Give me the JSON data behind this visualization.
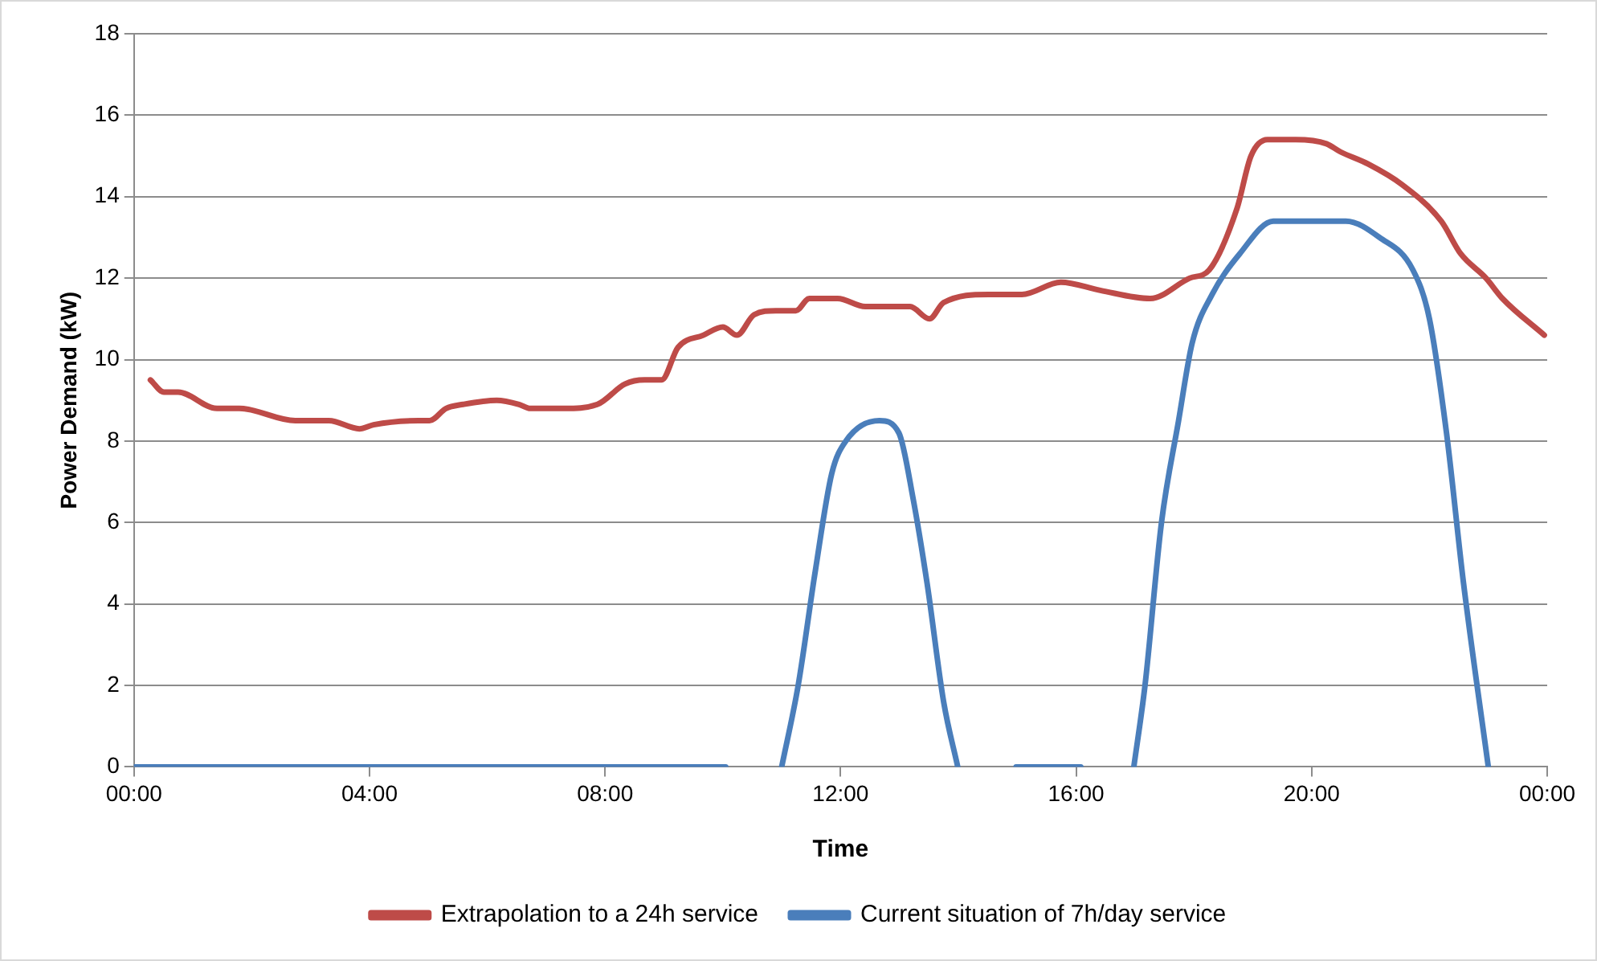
{
  "chart_data": {
    "type": "line",
    "xlabel": "Time",
    "ylabel": "Power Demand (kW)",
    "xlim": [
      0,
      24
    ],
    "xticks": [
      {
        "value": 0,
        "label": "00:00"
      },
      {
        "value": 4,
        "label": "04:00"
      },
      {
        "value": 8,
        "label": "08:00"
      },
      {
        "value": 12,
        "label": "12:00"
      },
      {
        "value": 16,
        "label": "16:00"
      },
      {
        "value": 20,
        "label": "20:00"
      },
      {
        "value": 24,
        "label": "00:00"
      }
    ],
    "ylim": [
      0,
      18
    ],
    "yticks": [
      0,
      2,
      4,
      6,
      8,
      10,
      12,
      14,
      16,
      18
    ],
    "grid": "y",
    "legend": "bottom",
    "marker": "none",
    "line_style": "solid",
    "series": [
      {
        "name": "Extrapolation to a 24h service",
        "color": "#be4b48",
        "x": [
          0.28,
          0.51,
          0.75,
          1.41,
          1.79,
          2.74,
          3.31,
          3.83,
          4.07,
          4.83,
          5.02,
          5.3,
          5.59,
          6.16,
          6.54,
          6.73,
          7.3,
          7.87,
          8.34,
          8.67,
          8.96,
          9.24,
          9.67,
          10.0,
          10.24,
          10.53,
          10.9,
          11.24,
          11.47,
          11.95,
          12.42,
          13.18,
          13.51,
          13.75,
          14.51,
          15.08,
          15.74,
          16.41,
          17.26,
          17.93,
          18.26,
          18.73,
          18.97,
          19.25,
          19.73,
          20.25,
          20.49,
          20.96,
          21.53,
          22.2,
          22.53,
          22.96,
          23.24,
          23.95
        ],
        "values": [
          9.5,
          9.2,
          9.2,
          8.8,
          8.8,
          8.5,
          8.5,
          8.3,
          8.4,
          8.5,
          8.5,
          8.8,
          8.9,
          9.0,
          8.9,
          8.8,
          8.8,
          8.9,
          9.4,
          9.5,
          9.5,
          10.3,
          10.6,
          10.8,
          10.6,
          11.1,
          11.2,
          11.2,
          11.5,
          11.5,
          11.3,
          11.3,
          11.0,
          11.4,
          11.6,
          11.6,
          11.9,
          11.7,
          11.5,
          12.0,
          12.2,
          13.7,
          15.0,
          15.4,
          15.4,
          15.3,
          15.1,
          14.8,
          14.3,
          13.4,
          12.6,
          12.0,
          11.5,
          10.6
        ]
      },
      {
        "name": "Current situation of 7h/day service",
        "color": "#4a7ebb",
        "x": [
          0,
          10.05,
          10.5,
          11.0,
          11.28,
          11.57,
          11.85,
          12.09,
          12.66,
          12.99,
          13.23,
          13.47,
          13.75,
          13.99,
          14.5,
          14.98,
          16.08,
          16.5,
          16.98,
          17.17,
          17.45,
          17.74,
          17.97,
          18.31,
          18.78,
          19.35,
          20.01,
          20.58,
          21.15,
          21.72,
          22.0,
          22.29,
          22.58,
          23.0
        ],
        "values": [
          0,
          0,
          null,
          0,
          2.0,
          4.8,
          7.2,
          8.0,
          8.5,
          8.2,
          6.6,
          4.5,
          1.6,
          0,
          null,
          0,
          0,
          null,
          0,
          2.0,
          6.0,
          8.5,
          10.4,
          11.6,
          12.6,
          13.4,
          13.4,
          13.4,
          13.0,
          12.2,
          11.0,
          8.2,
          4.5,
          0
        ]
      }
    ]
  }
}
